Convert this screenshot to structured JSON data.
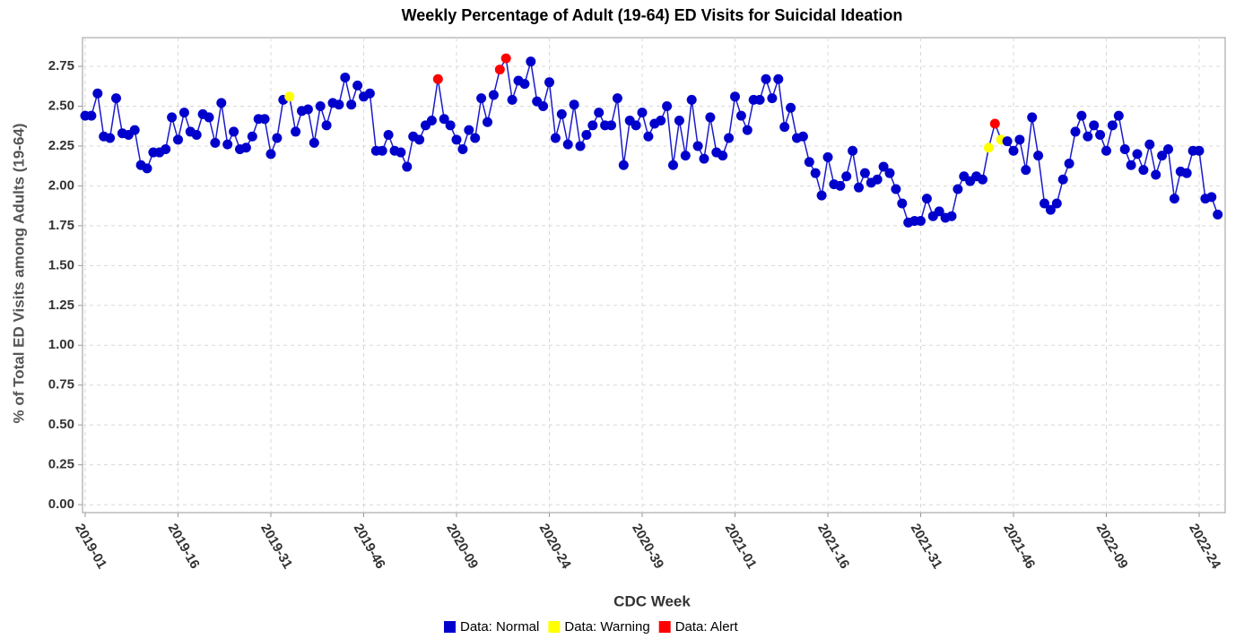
{
  "chart_data": {
    "type": "line",
    "title": "Weekly Percentage of Adult (19-64) ED Visits for Suicidal Ideation",
    "x_label": "CDC Week",
    "y_label": "% of Total ED Visits among Adults (19-64)",
    "categories": [
      "2019-01",
      null,
      null,
      null,
      null,
      null,
      null,
      null,
      null,
      null,
      null,
      null,
      null,
      null,
      null,
      "2019-16",
      null,
      null,
      null,
      null,
      null,
      null,
      null,
      null,
      null,
      null,
      null,
      null,
      null,
      null,
      "2019-31",
      null,
      null,
      null,
      null,
      null,
      null,
      null,
      null,
      null,
      null,
      null,
      null,
      null,
      null,
      "2019-46",
      null,
      null,
      null,
      null,
      null,
      null,
      null,
      null,
      null,
      null,
      null,
      null,
      null,
      null,
      "2020-09",
      null,
      null,
      null,
      null,
      null,
      null,
      null,
      null,
      null,
      null,
      null,
      null,
      null,
      null,
      "2020-24",
      null,
      null,
      null,
      null,
      null,
      null,
      null,
      null,
      null,
      null,
      null,
      null,
      null,
      null,
      "2020-39",
      null,
      null,
      null,
      null,
      null,
      null,
      null,
      null,
      null,
      null,
      null,
      null,
      null,
      null,
      "2021-01",
      null,
      null,
      null,
      null,
      null,
      null,
      null,
      null,
      null,
      null,
      null,
      null,
      null,
      null,
      "2021-16",
      null,
      null,
      null,
      null,
      null,
      null,
      null,
      null,
      null,
      null,
      null,
      null,
      null,
      null,
      "2021-31",
      null,
      null,
      null,
      null,
      null,
      null,
      null,
      null,
      null,
      null,
      null,
      null,
      null,
      null,
      "2021-46",
      null,
      null,
      null,
      null,
      null,
      null,
      null,
      null,
      null,
      null,
      null,
      null,
      null,
      null,
      "2022-09",
      null,
      null,
      null,
      null,
      null,
      null,
      null,
      null,
      null,
      null,
      null,
      null,
      null,
      null,
      "2022-24",
      null,
      null,
      null
    ],
    "values": [
      2.44,
      2.44,
      2.58,
      2.31,
      2.3,
      2.55,
      2.33,
      2.32,
      2.35,
      2.13,
      2.11,
      2.21,
      2.21,
      2.23,
      2.43,
      2.29,
      2.46,
      2.34,
      2.32,
      2.45,
      2.43,
      2.27,
      2.52,
      2.26,
      2.34,
      2.23,
      2.24,
      2.31,
      2.42,
      2.42,
      2.2,
      2.3,
      2.54,
      2.56,
      2.34,
      2.47,
      2.48,
      2.27,
      2.5,
      2.38,
      2.52,
      2.51,
      2.68,
      2.51,
      2.63,
      2.56,
      2.58,
      2.22,
      2.22,
      2.32,
      2.22,
      2.21,
      2.12,
      2.31,
      2.29,
      2.38,
      2.41,
      2.67,
      2.42,
      2.38,
      2.29,
      2.23,
      2.35,
      2.3,
      2.55,
      2.4,
      2.57,
      2.73,
      2.8,
      2.54,
      2.66,
      2.64,
      2.78,
      2.53,
      2.5,
      2.65,
      2.3,
      2.45,
      2.26,
      2.51,
      2.25,
      2.32,
      2.38,
      2.46,
      2.38,
      2.38,
      2.55,
      2.13,
      2.41,
      2.38,
      2.46,
      2.31,
      2.39,
      2.41,
      2.5,
      2.13,
      2.41,
      2.19,
      2.54,
      2.25,
      2.17,
      2.43,
      2.21,
      2.19,
      2.3,
      2.56,
      2.44,
      2.35,
      2.54,
      2.54,
      2.67,
      2.55,
      2.67,
      2.37,
      2.49,
      2.3,
      2.31,
      2.15,
      2.08,
      1.94,
      2.18,
      2.01,
      2.0,
      2.06,
      2.22,
      1.99,
      2.08,
      2.02,
      2.04,
      2.12,
      2.08,
      1.98,
      1.89,
      1.77,
      1.78,
      1.78,
      1.92,
      1.81,
      1.84,
      1.8,
      1.81,
      1.98,
      2.06,
      2.03,
      2.06,
      2.04,
      2.24,
      2.39,
      2.29,
      2.28,
      2.22,
      2.29,
      2.1,
      2.43,
      2.19,
      1.89,
      1.85,
      1.89,
      2.04,
      2.14,
      2.34,
      2.44,
      2.31,
      2.38,
      2.32,
      2.22,
      2.38,
      2.44,
      2.23,
      2.13,
      2.2,
      2.1,
      2.26,
      2.07,
      2.19,
      2.23,
      1.92,
      2.09,
      2.08,
      2.22,
      2.22,
      1.92,
      1.93,
      1.82
    ],
    "point_class": [
      0,
      0,
      0,
      0,
      0,
      0,
      0,
      0,
      0,
      0,
      0,
      0,
      0,
      0,
      0,
      0,
      0,
      0,
      0,
      0,
      0,
      0,
      0,
      0,
      0,
      0,
      0,
      0,
      0,
      0,
      0,
      0,
      0,
      1,
      0,
      0,
      0,
      0,
      0,
      0,
      0,
      0,
      0,
      0,
      0,
      0,
      0,
      0,
      0,
      0,
      0,
      0,
      0,
      0,
      0,
      0,
      0,
      2,
      0,
      0,
      0,
      0,
      0,
      0,
      0,
      0,
      0,
      2,
      2,
      0,
      0,
      0,
      0,
      0,
      0,
      0,
      0,
      0,
      0,
      0,
      0,
      0,
      0,
      0,
      0,
      0,
      0,
      0,
      0,
      0,
      0,
      0,
      0,
      0,
      0,
      0,
      0,
      0,
      0,
      0,
      0,
      0,
      0,
      0,
      0,
      0,
      0,
      0,
      0,
      0,
      0,
      0,
      0,
      0,
      0,
      0,
      0,
      0,
      0,
      0,
      0,
      0,
      0,
      0,
      0,
      0,
      0,
      0,
      0,
      0,
      0,
      0,
      0,
      0,
      0,
      0,
      0,
      0,
      0,
      0,
      0,
      0,
      0,
      0,
      0,
      0,
      1,
      2,
      1,
      0,
      0,
      0,
      0,
      0,
      0,
      0,
      0,
      0,
      0,
      0,
      0,
      0,
      0,
      0,
      0,
      0,
      0,
      0,
      0,
      0,
      0,
      0,
      0,
      0,
      0,
      0,
      0,
      0,
      0,
      0,
      0,
      0,
      0,
      0
    ],
    "legend": [
      {
        "name": "Data: Normal",
        "color": "#0000cc"
      },
      {
        "name": "Data: Warning",
        "color": "#ffff00"
      },
      {
        "name": "Data: Alert",
        "color": "#ff0000"
      }
    ],
    "line_color": "#1a1acc",
    "ylim": [
      -0.05,
      2.93
    ],
    "yticks": [
      {
        "value": 0,
        "label": "0.00"
      },
      {
        "value": 0.25,
        "label": "0.25"
      },
      {
        "value": 0.5,
        "label": "0.50"
      },
      {
        "value": 0.75,
        "label": "0.75"
      },
      {
        "value": 1,
        "label": "1.00"
      },
      {
        "value": 1.25,
        "label": "1.25"
      },
      {
        "value": 1.5,
        "label": "1.50"
      },
      {
        "value": 1.75,
        "label": "1.75"
      },
      {
        "value": 2,
        "label": "2.00"
      },
      {
        "value": 2.25,
        "label": "2.25"
      },
      {
        "value": 2.5,
        "label": "2.50"
      },
      {
        "value": 2.75,
        "label": "2.75"
      }
    ],
    "grid": true
  }
}
